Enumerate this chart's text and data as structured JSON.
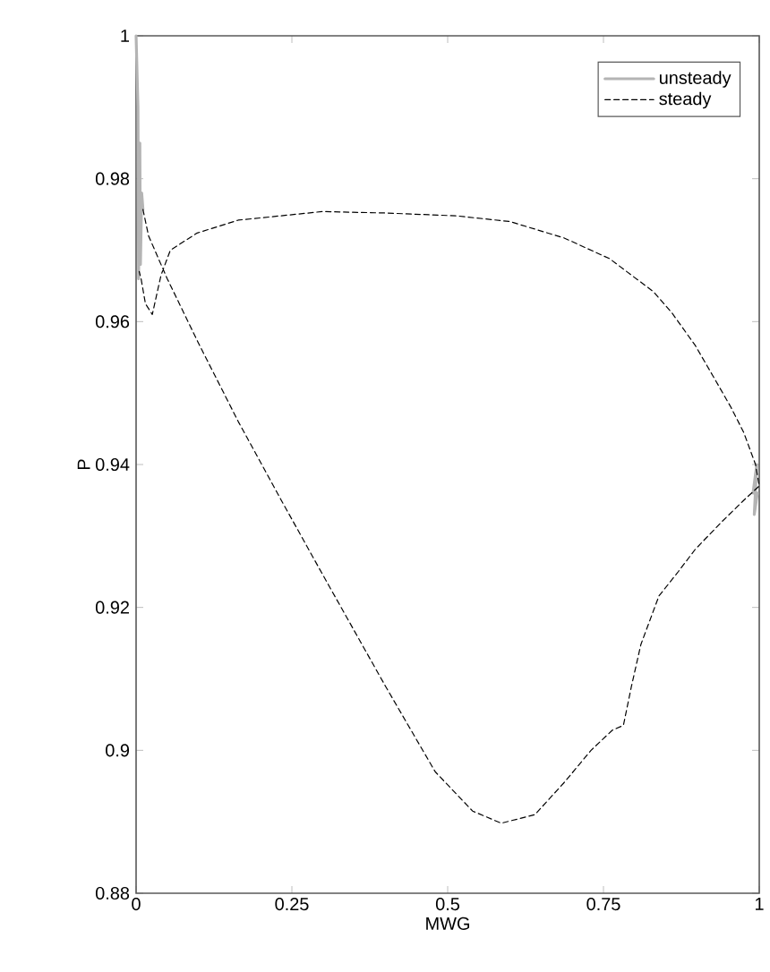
{
  "chart_data": {
    "type": "line",
    "xlabel": "MWG",
    "ylabel": "P",
    "xlim": [
      0,
      1
    ],
    "ylim": [
      0.88,
      1
    ],
    "xticks": [
      0,
      0.25,
      0.5,
      0.75,
      1
    ],
    "yticks": [
      0.88,
      0.9,
      0.92,
      0.94,
      0.96,
      0.98,
      1
    ],
    "grid": false,
    "legend": "top right",
    "marker": "none",
    "series": [
      {
        "name": "unsteady",
        "color": "#b4b4b4",
        "line_style": "solid",
        "x": [
          0,
          0.003,
          0.004,
          0.006,
          0.007,
          0.009,
          0.011,
          0.5,
          0.99,
          0.996,
          0.992,
          0.997
        ],
        "values": [
          1,
          0.99,
          0.966,
          0.985,
          0.968,
          0.978,
          0.9757,
          null,
          0.936,
          0.94,
          0.933,
          0.936
        ]
      },
      {
        "name": "steady",
        "color": "#000000",
        "line_style": "dashed",
        "x": [
          0.011,
          0.02,
          0.05,
          0.1,
          0.164,
          0.233,
          0.3,
          0.4,
          0.48,
          0.54,
          0.586,
          0.64,
          0.687,
          0.73,
          0.764,
          0.782,
          0.795,
          0.81,
          0.839,
          0.87,
          0.897,
          0.94,
          0.974,
          1,
          0.994,
          0.975,
          0.954,
          0.925,
          0.897,
          0.86,
          0.83,
          0.76,
          0.687,
          0.6,
          0.514,
          0.4,
          0.299,
          0.164,
          0.098,
          0.055,
          0.04,
          0.026,
          0.015,
          0.008,
          0.005
        ],
        "values": [
          0.9757,
          0.972,
          0.966,
          0.957,
          0.946,
          0.935,
          0.9245,
          0.909,
          0.897,
          0.8915,
          0.8898,
          0.891,
          0.8955,
          0.9,
          0.9028,
          0.9035,
          0.909,
          0.9148,
          0.9216,
          0.925,
          0.9281,
          0.932,
          0.9349,
          0.937,
          0.94,
          0.9445,
          0.9481,
          0.9525,
          0.9567,
          0.9612,
          0.9642,
          0.9688,
          0.9717,
          0.974,
          0.9748,
          0.9752,
          0.9754,
          0.9742,
          0.9724,
          0.97,
          0.9665,
          0.961,
          0.9625,
          0.966,
          0.967
        ]
      }
    ]
  }
}
